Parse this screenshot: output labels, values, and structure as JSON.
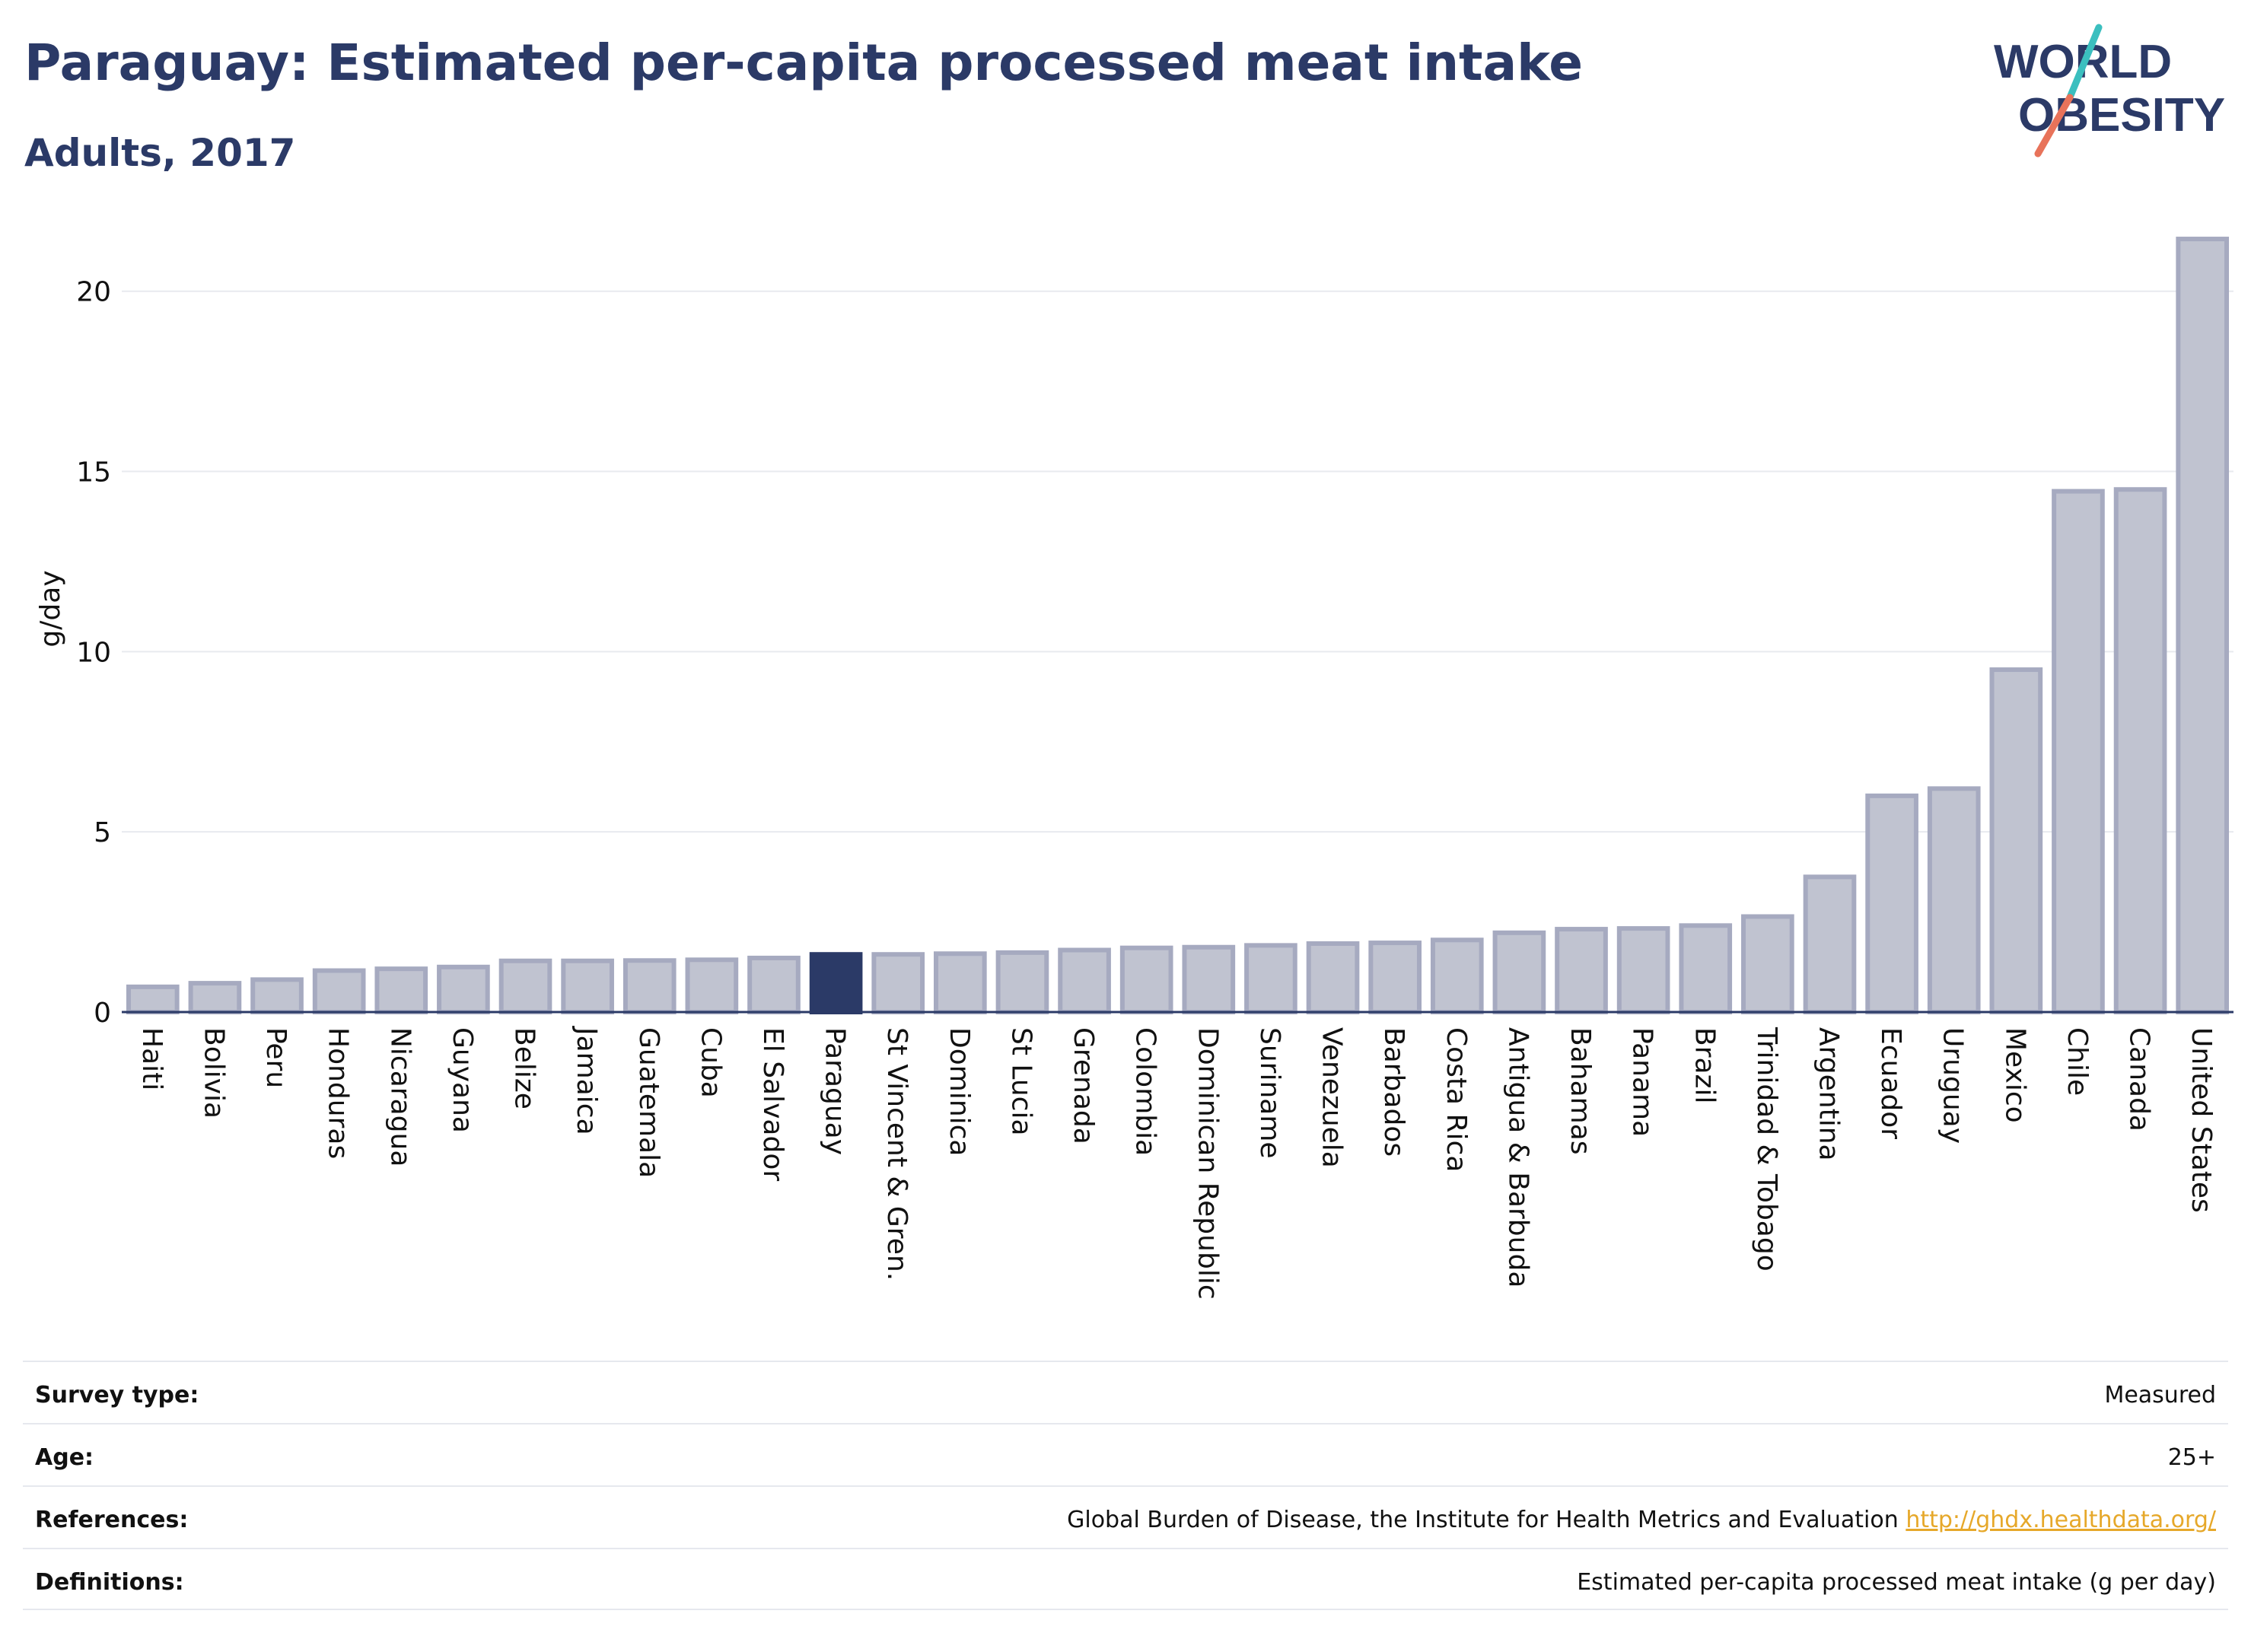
{
  "header": {
    "title": "Paraguay: Estimated per-capita processed meat intake",
    "subtitle": "Adults, 2017"
  },
  "logo": {
    "line1": "WORLD",
    "line2": "OBESITY"
  },
  "chart_data": {
    "type": "bar",
    "ylabel": "g/day",
    "ylim": [
      0,
      22
    ],
    "yticks": [
      0,
      5,
      10,
      15,
      20
    ],
    "grid": true,
    "highlight": "Paraguay",
    "highlight_color": "#2b3a67",
    "bar_color": "#c0c3d0",
    "bar_border_color": "#a6aac0",
    "categories": [
      "Haiti",
      "Bolivia",
      "Peru",
      "Honduras",
      "Nicaragua",
      "Guyana",
      "Belize",
      "Jamaica",
      "Guatemala",
      "Cuba",
      "El Salvador",
      "Paraguay",
      "St Vincent & Gren.",
      "Dominica",
      "St Lucia",
      "Grenada",
      "Colombia",
      "Dominican Republic",
      "Suriname",
      "Venezuela",
      "Barbados",
      "Costa Rica",
      "Antigua & Barbuda",
      "Bahamas",
      "Panama",
      "Brazil",
      "Trinidad & Tobago",
      "Argentina",
      "Ecuador",
      "Uruguay",
      "Mexico",
      "Chile",
      "Canada",
      "United States"
    ],
    "values": [
      0.7,
      0.8,
      0.9,
      1.15,
      1.2,
      1.25,
      1.42,
      1.42,
      1.43,
      1.45,
      1.5,
      1.6,
      1.6,
      1.62,
      1.65,
      1.72,
      1.78,
      1.8,
      1.85,
      1.9,
      1.92,
      2.0,
      2.2,
      2.3,
      2.32,
      2.4,
      2.65,
      3.75,
      6.0,
      6.2,
      9.5,
      14.45,
      14.5,
      21.45
    ]
  },
  "info": {
    "survey_type_label": "Survey type:",
    "survey_type_value": "Measured",
    "age_label": "Age:",
    "age_value": "25+",
    "references_label": "References:",
    "references_value": "Global Burden of Disease, the Institute for Health Metrics and Evaluation",
    "references_link": "http://ghdx.healthdata.org/",
    "definitions_label": "Definitions:",
    "definitions_value": "Estimated per-capita processed meat intake (g per day)"
  },
  "colors": {
    "title": "#2b3a67",
    "logo_slash_teal": "#3bbfbf",
    "logo_slash_coral": "#e8735a",
    "link": "#e6a82a"
  }
}
